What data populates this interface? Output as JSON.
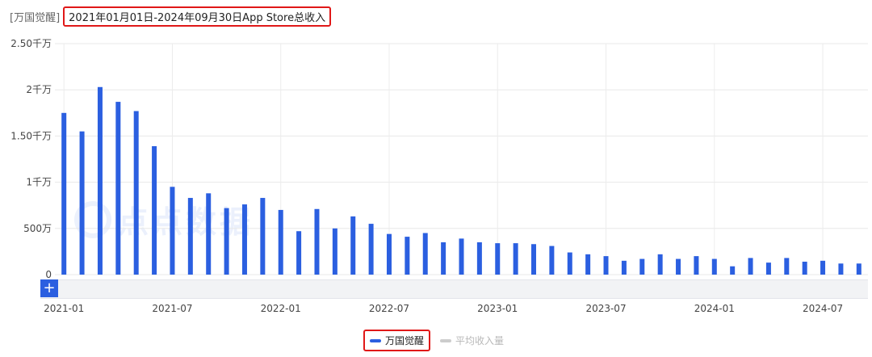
{
  "header": {
    "prefix": "[万国觉醒]",
    "range": "2021年01月01日-2024年09月30日App Store总收入"
  },
  "watermark": {
    "text": "点点数据"
  },
  "zoom": {
    "label": "+"
  },
  "legend": [
    {
      "name": "万国觉醒",
      "color": "#2b5fe0",
      "active": true
    },
    {
      "name": "平均收入量",
      "color": "#cccccc",
      "active": false
    }
  ],
  "chart_data": {
    "type": "bar",
    "x_tick_labels": [
      "2021-01",
      "2021-07",
      "2022-01",
      "2022-07",
      "2023-01",
      "2023-07",
      "2024-01",
      "2024-07"
    ],
    "y_tick_labels": [
      "0",
      "500万",
      "1千万",
      "1.50千万",
      "2千万",
      "2.50千万"
    ],
    "ylim": [
      0,
      25000000
    ],
    "bar_color": "#2b5fe0",
    "series": [
      {
        "name": "万国觉醒",
        "categories": [
          "2021-01",
          "2021-02",
          "2021-03",
          "2021-04",
          "2021-05",
          "2021-06",
          "2021-07",
          "2021-08",
          "2021-09",
          "2021-10",
          "2021-11",
          "2021-12",
          "2022-01",
          "2022-02",
          "2022-03",
          "2022-04",
          "2022-05",
          "2022-06",
          "2022-07",
          "2022-08",
          "2022-09",
          "2022-10",
          "2022-11",
          "2022-12",
          "2023-01",
          "2023-02",
          "2023-03",
          "2023-04",
          "2023-05",
          "2023-06",
          "2023-07",
          "2023-08",
          "2023-09",
          "2023-10",
          "2023-11",
          "2023-12",
          "2024-01",
          "2024-02",
          "2024-03",
          "2024-04",
          "2024-05",
          "2024-06",
          "2024-07",
          "2024-08",
          "2024-09"
        ],
        "values": [
          17500000,
          15500000,
          20300000,
          18700000,
          17700000,
          13900000,
          9500000,
          8300000,
          8800000,
          7200000,
          7600000,
          8300000,
          7000000,
          4700000,
          7100000,
          5000000,
          6300000,
          5500000,
          4400000,
          4100000,
          4500000,
          3500000,
          3900000,
          3500000,
          3400000,
          3400000,
          3300000,
          3100000,
          2400000,
          2200000,
          2000000,
          1500000,
          1700000,
          2200000,
          1700000,
          2000000,
          1700000,
          900000,
          1800000,
          1300000,
          1800000,
          1400000,
          1500000,
          1200000,
          1200000
        ]
      }
    ],
    "legend_position": "bottom",
    "grid": true
  }
}
